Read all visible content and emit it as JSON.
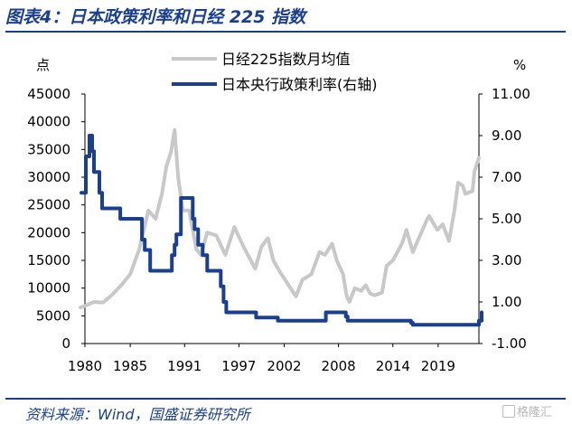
{
  "figure_title": "图表4：日本政策利率和日经 225 指数",
  "source": "资料来源：Wind，国盛证券研究所",
  "watermark": "格隆汇",
  "colors": {
    "nikkei": "#c8c8c8",
    "policy_rate": "#1a3f91",
    "title": "#1a3f91",
    "axis": "#000000"
  },
  "chart_data": {
    "type": "line",
    "left_axis_unit": "点",
    "right_axis_unit": "%",
    "x_ticks": [
      "1980",
      "1985",
      "1991",
      "1997",
      "2002",
      "2008",
      "2014",
      "2019"
    ],
    "y_left_ticks": [
      "45000",
      "40000",
      "35000",
      "30000",
      "25000",
      "20000",
      "15000",
      "10000",
      "5000",
      "0"
    ],
    "y_right_ticks": [
      "11.00",
      "9.00",
      "7.00",
      "5.00",
      "3.00",
      "1.00",
      "-1.00"
    ],
    "ylim_left": [
      0,
      45000
    ],
    "ylim_right": [
      -1,
      11
    ],
    "xlim": [
      1980,
      2023.5
    ],
    "grid": false,
    "legend_position": "top-center",
    "series": [
      {
        "name": "日经225指数月均值",
        "axis": "left",
        "x": [
          1979.5,
          1980.0,
          1981.0,
          1982.0,
          1983.0,
          1984.0,
          1985.0,
          1986.0,
          1987.0,
          1987.8,
          1988.5,
          1989.0,
          1989.5,
          1989.9,
          1990.3,
          1990.8,
          1991.5,
          1992.3,
          1992.8,
          1993.5,
          1994.5,
          1995.5,
          1996.5,
          1997.5,
          1998.8,
          1999.5,
          2000.2,
          2000.8,
          2001.5,
          2002.5,
          2003.3,
          2004.0,
          2005.0,
          2005.9,
          2006.5,
          2007.3,
          2007.8,
          2008.5,
          2008.9,
          2009.2,
          2009.8,
          2010.5,
          2011.0,
          2011.5,
          2012.0,
          2012.8,
          2013.3,
          2014.0,
          2015.0,
          2015.5,
          2016.2,
          2017.0,
          2017.8,
          2018.0,
          2018.9,
          2019.5,
          2020.2,
          2020.8,
          2021.2,
          2021.7,
          2022.0,
          2022.8,
          2023.0,
          2023.5
        ],
        "y": [
          6500,
          6800,
          7500,
          7400,
          8800,
          10500,
          12500,
          17000,
          24000,
          22500,
          27000,
          32000,
          34500,
          38500,
          30000,
          24000,
          24000,
          17000,
          16000,
          20000,
          19500,
          16000,
          21000,
          17500,
          13500,
          17500,
          19000,
          15000,
          13000,
          10500,
          8500,
          11500,
          12500,
          16500,
          16000,
          18000,
          15000,
          12500,
          8500,
          7500,
          10000,
          9500,
          10500,
          9000,
          8700,
          9200,
          14000,
          15000,
          18000,
          20500,
          16500,
          19500,
          22500,
          23000,
          20500,
          21500,
          18500,
          24000,
          29000,
          28500,
          27000,
          27500,
          31000,
          33500
        ]
      },
      {
        "name": "日本央行政策利率(右轴)",
        "axis": "right",
        "x": [
          1979.6,
          1980.1,
          1980.5,
          1980.8,
          1981.0,
          1981.6,
          1981.9,
          1983.6,
          1983.9,
          1986.0,
          1986.3,
          1986.6,
          1987.2,
          1989.4,
          1989.6,
          1989.9,
          1990.1,
          1990.6,
          1991.5,
          1991.9,
          1992.1,
          1992.5,
          1993.0,
          1993.5,
          1995.0,
          1995.3,
          1995.6,
          1995.8,
          1998.9,
          1999.1,
          2000.5,
          2001.0,
          2001.3,
          2006.4,
          2006.6,
          2007.1,
          2008.8,
          2009.0,
          2013.0,
          2016.0,
          2016.2,
          2023.2,
          2023.5,
          2023.8
        ],
        "y": [
          6.25,
          8.0,
          9.0,
          8.25,
          7.25,
          6.25,
          5.5,
          5.5,
          5.0,
          5.0,
          4.0,
          3.5,
          2.5,
          2.5,
          3.25,
          3.75,
          4.25,
          6.0,
          6.0,
          5.0,
          4.5,
          3.75,
          3.25,
          2.5,
          1.75,
          1.0,
          0.5,
          0.5,
          0.25,
          0.25,
          0.25,
          0.25,
          0.1,
          0.1,
          0.5,
          0.5,
          0.3,
          0.1,
          0.1,
          0.0,
          -0.1,
          -0.1,
          0.1,
          0.5
        ]
      }
    ]
  }
}
